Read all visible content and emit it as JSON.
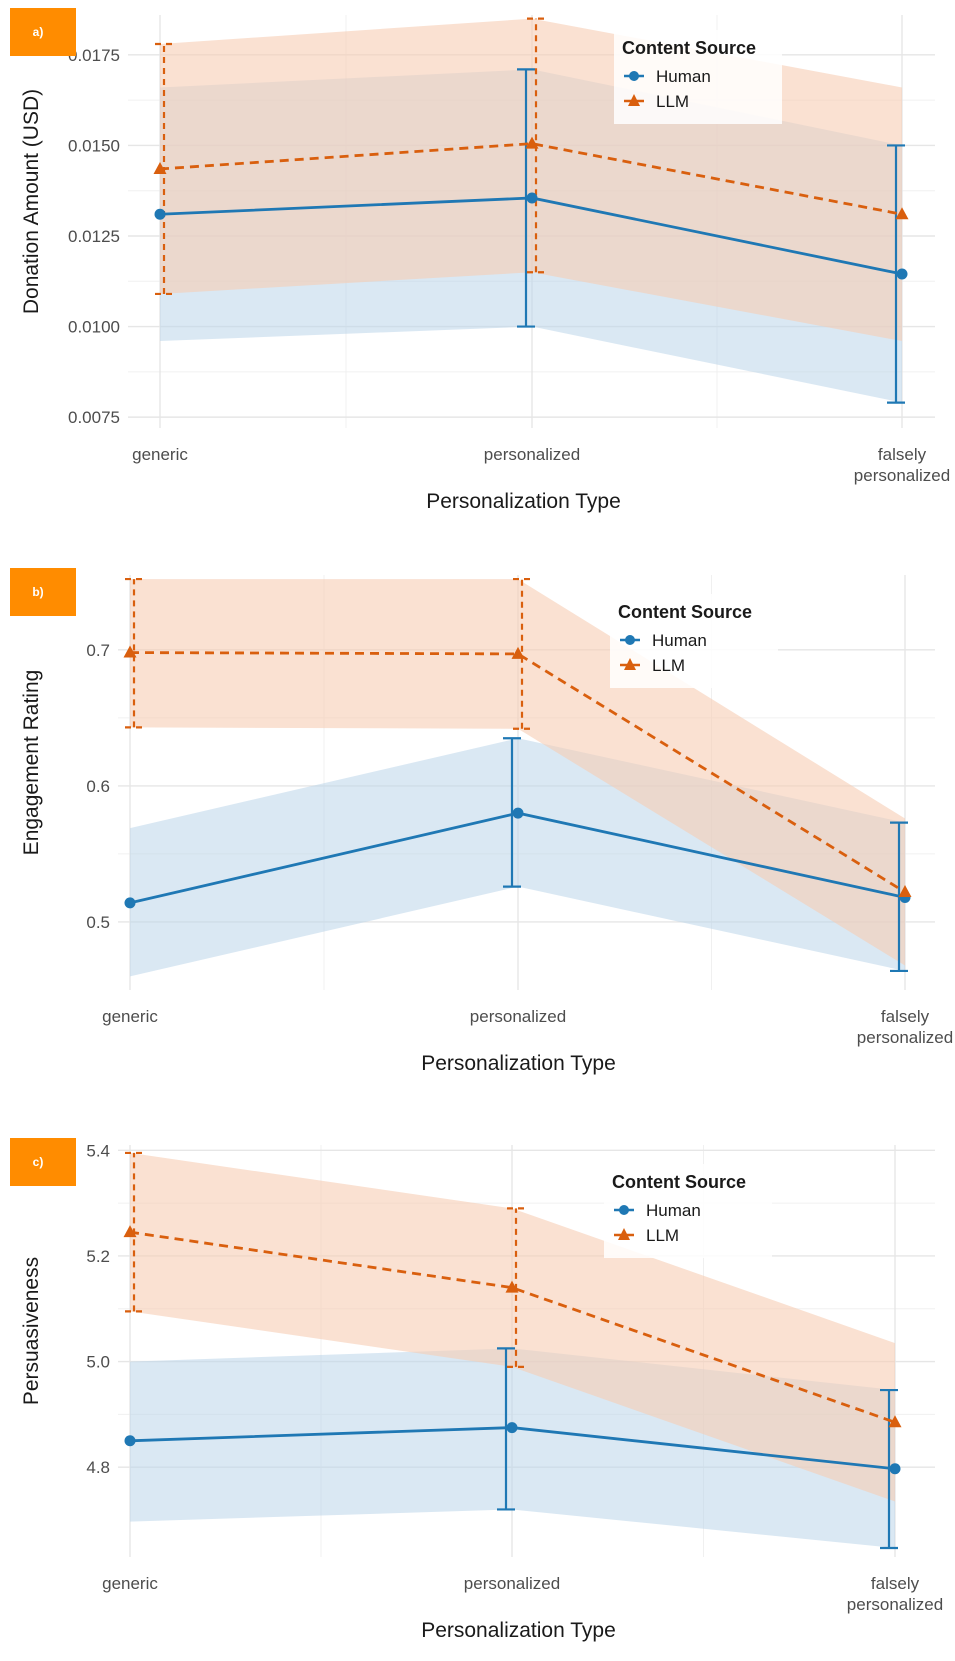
{
  "colors": {
    "human": "#1f78b4",
    "llm": "#d95f0e",
    "human_band": "#bcd6ea",
    "llm_band": "#f6cdb4",
    "grid": "#e6e6e6",
    "badge": "#ff8c00"
  },
  "chart_data": [
    {
      "type": "line",
      "panel_label": "a)",
      "xlabel": "Personalization Type",
      "ylabel": "Donation Amount (USD)",
      "categories": [
        "generic",
        "personalized",
        "falsely personalized"
      ],
      "ylim": [
        0.0072,
        0.0186
      ],
      "yticks": [
        0.0075,
        0.01,
        0.0125,
        0.015,
        0.0175
      ],
      "ytick_labels": [
        "0.0075",
        "0.0100",
        "0.0125",
        "0.0150",
        "0.0175"
      ],
      "grid": true,
      "legend": {
        "title": "Content Source",
        "position": "top-right",
        "entries": [
          "Human",
          "LLM"
        ]
      },
      "series": [
        {
          "name": "Human",
          "values": [
            0.0131,
            0.01355,
            0.01145
          ],
          "ci_low": [
            0.0096,
            0.01,
            0.0079
          ],
          "ci_high": [
            0.0166,
            0.0171,
            0.015
          ],
          "errorbars": [
            1,
            2
          ]
        },
        {
          "name": "LLM",
          "values": [
            0.01435,
            0.01505,
            0.0131
          ],
          "ci_low": [
            0.0109,
            0.0115,
            0.0096
          ],
          "ci_high": [
            0.0178,
            0.0185,
            0.0166
          ],
          "errorbars": [
            0,
            1
          ]
        }
      ]
    },
    {
      "type": "line",
      "panel_label": "b)",
      "xlabel": "Personalization Type",
      "ylabel": "Engagement Rating",
      "categories": [
        "generic",
        "personalized",
        "falsely personalized"
      ],
      "ylim": [
        0.45,
        0.755
      ],
      "yticks": [
        0.5,
        0.6,
        0.7
      ],
      "ytick_labels": [
        "0.5",
        "0.6",
        "0.7"
      ],
      "grid": true,
      "legend": {
        "title": "Content Source",
        "position": "top-right",
        "entries": [
          "Human",
          "LLM"
        ]
      },
      "series": [
        {
          "name": "Human",
          "values": [
            0.514,
            0.58,
            0.518
          ],
          "ci_low": [
            0.46,
            0.526,
            0.464
          ],
          "ci_high": [
            0.569,
            0.635,
            0.573
          ],
          "errorbars": [
            1,
            2
          ]
        },
        {
          "name": "LLM",
          "values": [
            0.698,
            0.697,
            0.522
          ],
          "ci_low": [
            0.643,
            0.642,
            0.468
          ],
          "ci_high": [
            0.752,
            0.752,
            0.576
          ],
          "errorbars": [
            0,
            1
          ]
        }
      ]
    },
    {
      "type": "line",
      "panel_label": "c)",
      "xlabel": "Personalization Type",
      "ylabel": "Persuasiveness",
      "categories": [
        "generic",
        "personalized",
        "falsely personalized"
      ],
      "ylim": [
        4.63,
        5.41
      ],
      "yticks": [
        4.8,
        5.0,
        5.2,
        5.4
      ],
      "ytick_labels": [
        "4.8",
        "5.0",
        "5.2",
        "5.4"
      ],
      "grid": true,
      "legend": {
        "title": "Content Source",
        "position": "top-right",
        "entries": [
          "Human",
          "LLM"
        ]
      },
      "series": [
        {
          "name": "Human",
          "values": [
            4.85,
            4.875,
            4.797
          ],
          "ci_low": [
            4.697,
            4.72,
            4.647
          ],
          "ci_high": [
            5.0,
            5.025,
            4.946
          ],
          "errorbars": [
            1,
            2
          ]
        },
        {
          "name": "LLM",
          "values": [
            5.245,
            5.14,
            4.885
          ],
          "ci_low": [
            5.095,
            4.99,
            4.735
          ],
          "ci_high": [
            5.395,
            5.29,
            5.035
          ],
          "errorbars": [
            0,
            1
          ]
        }
      ]
    }
  ]
}
